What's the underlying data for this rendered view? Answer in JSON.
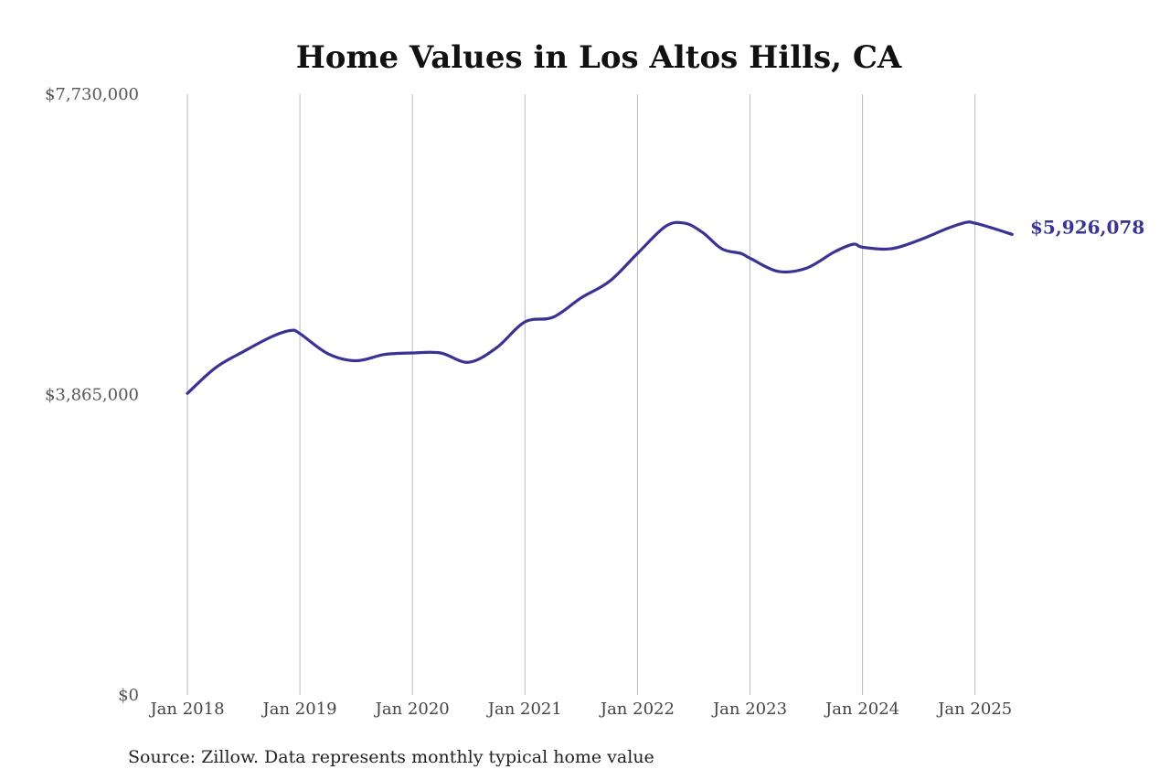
{
  "chart_data": {
    "type": "line",
    "title": "Home Values in Los Altos Hills, CA",
    "xlabel": "",
    "ylabel": "",
    "ylim": [
      0,
      7730000
    ],
    "y_ticks": [
      {
        "value": 0,
        "label": "$0"
      },
      {
        "value": 3865000,
        "label": "$3,865,000"
      },
      {
        "value": 7730000,
        "label": "$7,730,000"
      }
    ],
    "x_ticks": [
      {
        "value": 2018,
        "label": "Jan 2018"
      },
      {
        "value": 2019,
        "label": "Jan 2019"
      },
      {
        "value": 2020,
        "label": "Jan 2020"
      },
      {
        "value": 2021,
        "label": "Jan 2021"
      },
      {
        "value": 2022,
        "label": "Jan 2022"
      },
      {
        "value": 2023,
        "label": "Jan 2023"
      },
      {
        "value": 2024,
        "label": "Jan 2024"
      },
      {
        "value": 2025,
        "label": "Jan 2025"
      }
    ],
    "xlim": [
      2018,
      2025.33
    ],
    "grid": "vertical",
    "line_color": "#3a3393",
    "series": [
      {
        "name": "",
        "x": [
          2018.0,
          2018.25,
          2018.5,
          2018.75,
          2018.92,
          2019.0,
          2019.25,
          2019.5,
          2019.75,
          2020.0,
          2020.25,
          2020.5,
          2020.75,
          2021.0,
          2021.25,
          2021.5,
          2021.75,
          2022.0,
          2022.25,
          2022.42,
          2022.58,
          2022.75,
          2022.92,
          2023.0,
          2023.25,
          2023.5,
          2023.75,
          2023.92,
          2024.0,
          2024.25,
          2024.5,
          2024.75,
          2024.92,
          2025.0,
          2025.17,
          2025.33
        ],
        "y": [
          3880000,
          4210000,
          4420000,
          4610000,
          4690000,
          4650000,
          4390000,
          4300000,
          4380000,
          4400000,
          4400000,
          4280000,
          4470000,
          4800000,
          4860000,
          5110000,
          5320000,
          5680000,
          6030000,
          6070000,
          5950000,
          5740000,
          5680000,
          5620000,
          5450000,
          5490000,
          5700000,
          5800000,
          5760000,
          5740000,
          5850000,
          6000000,
          6080000,
          6070000,
          6000000,
          5926078
        ]
      }
    ],
    "end_label": "$5,926,078",
    "source": "Source: Zillow. Data represents monthly typical home value"
  }
}
